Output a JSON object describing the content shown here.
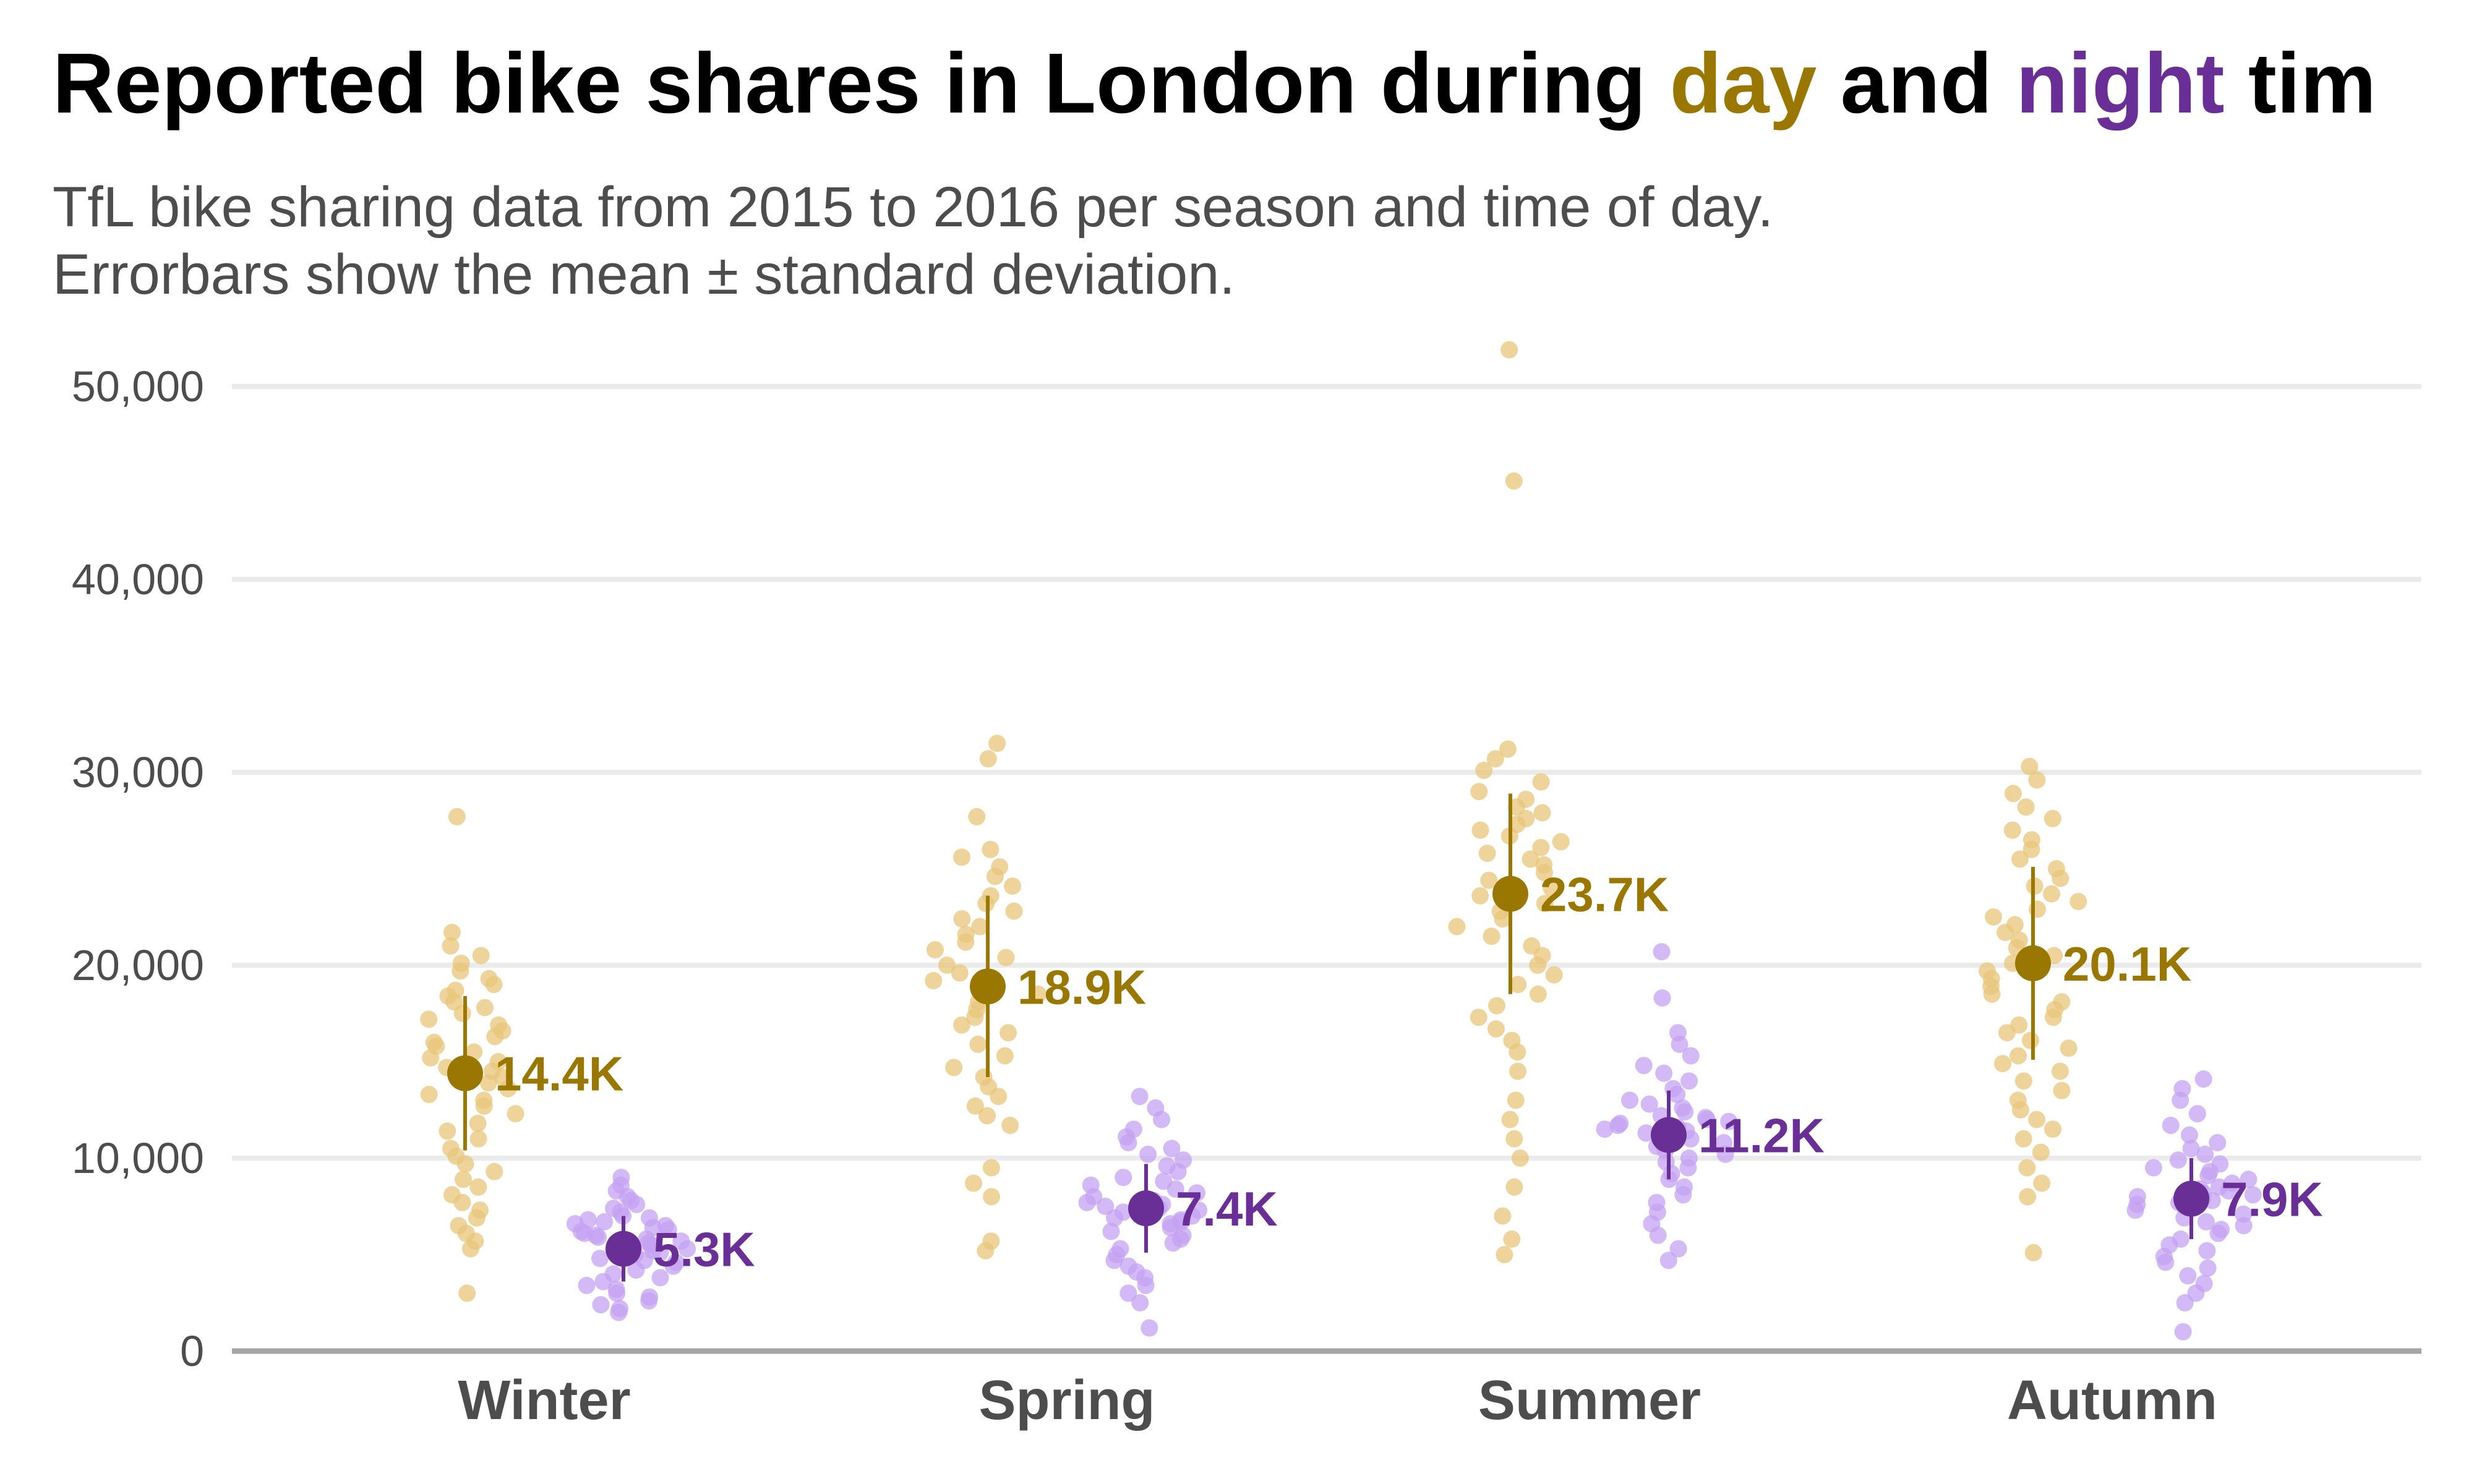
{
  "title": {
    "prefix": "Reported bike shares in London during ",
    "day_word": "day",
    "connector": " and ",
    "night_word": "night",
    "suffix": " tim"
  },
  "subtitle": {
    "line1": "TfL bike sharing data from 2015 to 2016 per season and time of day.",
    "line2": "Errorbars show the mean ± standard deviation."
  },
  "colors": {
    "day": "#9a7700",
    "night": "#6a2f97",
    "day_points": "#e8c57a",
    "night_points": "#c4a2f2"
  },
  "chart_data": {
    "type": "scatter",
    "subtype": "jittered strip plot with mean ± sd error bars",
    "title": "Reported bike shares in London during day and night tim",
    "xlabel": "",
    "ylabel": "",
    "categories": [
      "Winter",
      "Spring",
      "Summer",
      "Autumn"
    ],
    "ylim": [
      0,
      50000
    ],
    "yticks": [
      0,
      10000,
      20000,
      30000,
      40000,
      50000
    ],
    "ytick_labels": [
      "0",
      "10,000",
      "20,000",
      "30,000",
      "40,000",
      "50,000"
    ],
    "grid": "horizontal",
    "series": [
      {
        "name": "day",
        "mean": [
          14400,
          18900,
          23700,
          20100
        ],
        "sd": [
          4000,
          4700,
          5200,
          5000
        ],
        "mean_labels": [
          "14.4K",
          "18.9K",
          "23.7K",
          "20.1K"
        ],
        "points": [
          [
            11000,
            11400,
            11800,
            12300,
            12700,
            13000,
            13300,
            13600,
            13900,
            14200,
            14500,
            14700,
            15000,
            15200,
            15500,
            15800,
            16000,
            16300,
            16600,
            16900,
            17200,
            17500,
            17800,
            18100,
            18400,
            18700,
            19000,
            19300,
            19700,
            20100,
            20500,
            21000,
            21700,
            10500,
            10100,
            9700,
            9300,
            8900,
            8500,
            8100,
            7700,
            7300,
            6900,
            6500,
            6100,
            5700,
            5300,
            27700,
            3000
          ],
          [
            14700,
            15300,
            15900,
            16500,
            16900,
            17300,
            17700,
            18100,
            18500,
            18900,
            19200,
            19600,
            20000,
            20400,
            20800,
            21200,
            21600,
            22000,
            22400,
            22800,
            23200,
            23600,
            24100,
            24600,
            25100,
            25600,
            26000,
            14200,
            13700,
            13200,
            12700,
            12200,
            11700,
            27700,
            30700,
            31500,
            9500,
            8700,
            8000,
            5700,
            5200
          ],
          [
            25200,
            25500,
            25800,
            26100,
            26400,
            26700,
            27000,
            27300,
            27600,
            27900,
            28200,
            28600,
            29000,
            29500,
            30100,
            30700,
            31200,
            24800,
            24400,
            24000,
            23600,
            23200,
            22800,
            22400,
            22000,
            21500,
            21000,
            20500,
            20000,
            19500,
            19000,
            18500,
            17900,
            17300,
            16700,
            16100,
            15500,
            14500,
            13000,
            12000,
            11000,
            10000,
            8500,
            7000,
            5800,
            5000,
            45100,
            51900
          ],
          [
            20100,
            20500,
            20900,
            21300,
            21700,
            22100,
            22500,
            22900,
            23300,
            23700,
            24100,
            24500,
            25000,
            25500,
            26000,
            26500,
            27000,
            27600,
            28200,
            28900,
            29600,
            30300,
            19700,
            19300,
            18900,
            18500,
            18100,
            17700,
            17300,
            16900,
            16500,
            16100,
            15700,
            15300,
            14900,
            14500,
            14000,
            13500,
            13000,
            12500,
            12000,
            11500,
            11000,
            10300,
            9500,
            8700,
            8000,
            5100
          ]
        ]
      },
      {
        "name": "night",
        "mean": [
          5300,
          7400,
          11200,
          7900
        ],
        "sd": [
          1700,
          2300,
          2300,
          2100
        ],
        "mean_labels": [
          "5.3K",
          "7.4K",
          "11.2K",
          "7.9K"
        ],
        "points": [
          [
            5200,
            5400,
            5600,
            5800,
            6000,
            6200,
            6400,
            6600,
            6800,
            7000,
            7200,
            7400,
            7600,
            7800,
            8000,
            8300,
            8600,
            9000,
            5000,
            4800,
            4600,
            4400,
            4200,
            4000,
            3800,
            3600,
            3400,
            3200,
            3000,
            2800,
            2600,
            2400,
            2200,
            2000,
            6100,
            6300,
            5900,
            5700,
            5500,
            5300,
            5100,
            4900,
            4700,
            6500,
            6700,
            6900
          ],
          [
            7400,
            7600,
            7800,
            8000,
            8200,
            8400,
            8600,
            8800,
            9000,
            9300,
            9600,
            9900,
            10200,
            10500,
            10800,
            11100,
            11500,
            12000,
            12600,
            13200,
            7200,
            7000,
            6800,
            6600,
            6400,
            6200,
            6000,
            5800,
            5600,
            5300,
            5000,
            4700,
            4400,
            4100,
            3800,
            3400,
            3000,
            2500,
            1200,
            7300,
            7500,
            7700,
            6900,
            6700
          ],
          [
            11200,
            11400,
            11600,
            11800,
            12000,
            12200,
            12400,
            12600,
            12800,
            13000,
            13300,
            13600,
            14000,
            14400,
            14800,
            15300,
            15900,
            16500,
            18300,
            20700,
            11000,
            10800,
            10600,
            10400,
            10200,
            10000,
            9800,
            9500,
            9200,
            8900,
            8500,
            8100,
            7700,
            7200,
            6600,
            6000,
            5300,
            4700,
            11300,
            11500,
            11700,
            11900,
            12100
          ],
          [
            7900,
            8100,
            8300,
            8500,
            8700,
            8900,
            9100,
            9300,
            9500,
            9700,
            9900,
            10200,
            10500,
            10800,
            11200,
            11700,
            12300,
            13000,
            13600,
            14100,
            7700,
            7500,
            7300,
            7100,
            6900,
            6700,
            6500,
            6300,
            6100,
            5800,
            5500,
            5200,
            4900,
            4600,
            4300,
            3900,
            3500,
            3000,
            2500,
            1000,
            8000,
            8200,
            8400,
            7800,
            7600
          ]
        ]
      }
    ]
  }
}
